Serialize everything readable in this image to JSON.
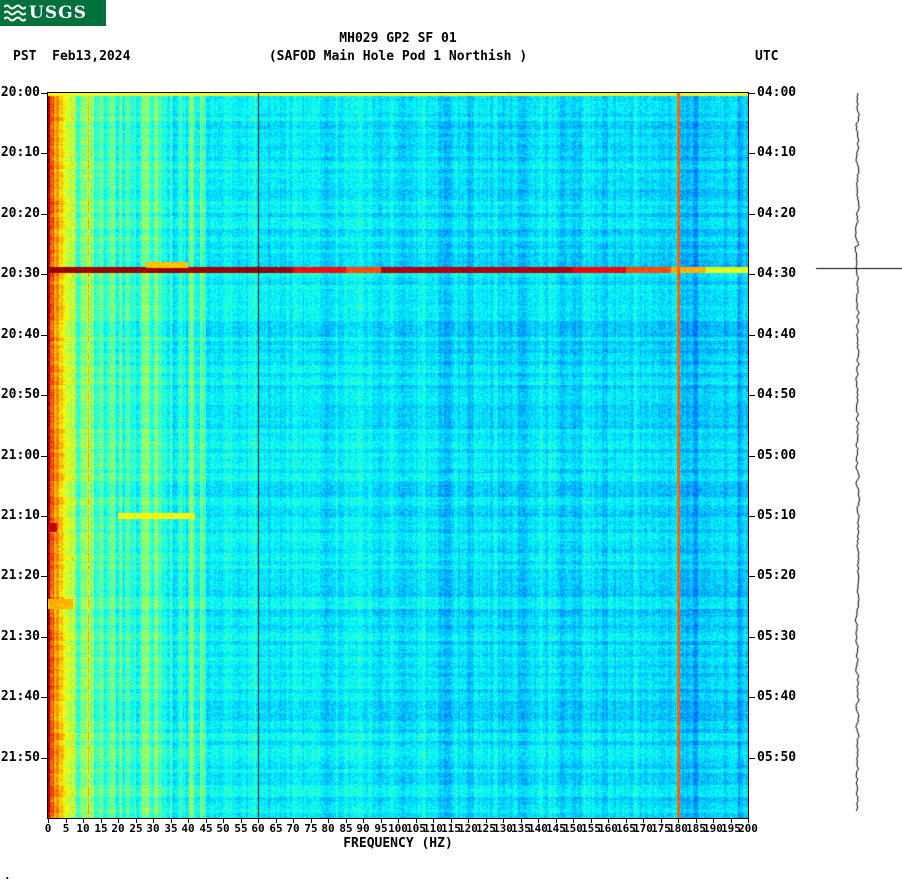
{
  "header": {
    "logo_text": "USGS"
  },
  "titles": {
    "station": "MH029 GP2 SF 01",
    "subtitle": "(SAFOD Main Hole Pod 1 Northish )",
    "left_header": "PST  Feb13,2024",
    "right_header": "UTC"
  },
  "footer_mark": ".",
  "colors": {
    "header_green": "#00703C",
    "plot_border": "#000000",
    "mains_line": "#000E1E",
    "trace": "#000000"
  },
  "chart_data": {
    "type": "heatmap",
    "title": "MH029 GP2 SF 01",
    "subtitle": "(SAFOD Main Hole Pod 1 Northish )",
    "xlabel": "FREQUENCY (HZ)",
    "ylabel_left": "PST",
    "ylabel_right": "UTC",
    "date": "Feb13,2024",
    "colormap": "jet",
    "x_range_hz": [
      0,
      200
    ],
    "x_tick_step_hz": 5,
    "x_tick_labels": [
      "0",
      "5",
      "10",
      "15",
      "20",
      "25",
      "30",
      "35",
      "40",
      "45",
      "50",
      "55",
      "60",
      "65",
      "70",
      "75",
      "80",
      "85",
      "90",
      "95",
      "100",
      "105",
      "110",
      "115",
      "120",
      "125",
      "130",
      "135",
      "140",
      "145",
      "150",
      "155",
      "160",
      "165",
      "170",
      "175",
      "180",
      "185",
      "190",
      "195",
      "200"
    ],
    "time_span_minutes": 120,
    "left_time_ticks_pst": [
      "20:00",
      "20:10",
      "20:20",
      "20:30",
      "20:40",
      "20:50",
      "21:00",
      "21:10",
      "21:20",
      "21:30",
      "21:40",
      "21:50"
    ],
    "right_time_ticks_utc": [
      "04:00",
      "04:10",
      "04:20",
      "04:30",
      "04:40",
      "04:50",
      "05:00",
      "05:10",
      "05:20",
      "05:30",
      "05:40",
      "05:50"
    ],
    "background_value": 0.35,
    "bands": [
      {
        "f": [
          0,
          1.5
        ],
        "v": 0.8
      },
      {
        "f": [
          1.5,
          3
        ],
        "v": 0.66
      },
      {
        "f": [
          3,
          8
        ],
        "v": 0.58
      },
      {
        "f": [
          8,
          15
        ],
        "v": 0.5
      },
      {
        "f": [
          15,
          45
        ],
        "v": 0.42
      },
      {
        "f": [
          45,
          100
        ],
        "v": 0.36
      },
      {
        "f": [
          100,
          180
        ],
        "v": 0.345
      },
      {
        "f": [
          180,
          200
        ],
        "v": 0.315
      }
    ],
    "stripe_amp": {
      "low_freq": 0.13,
      "high_freq": 0.045,
      "low_freq_cutoff_hz": 45
    },
    "vertical_lines": [
      {
        "name": "mains-60hz-notch",
        "freq_hz": 60,
        "style": "dark"
      },
      {
        "name": "orange-line-180hz",
        "freq_hz": 180,
        "style": "orange",
        "value": 0.78
      }
    ],
    "events": [
      {
        "name": "broadband-arrival",
        "pst": "20:29",
        "utc": "04:29",
        "t_min": 29.2,
        "dur_min": 0.9,
        "profile": [
          {
            "f": [
              0,
              70
            ],
            "v": 0.97
          },
          {
            "f": [
              70,
              85
            ],
            "v": 0.87
          },
          {
            "f": [
              85,
              95
            ],
            "v": 0.8
          },
          {
            "f": [
              95,
              150
            ],
            "v": 0.95
          },
          {
            "f": [
              150,
              165
            ],
            "v": 0.88
          },
          {
            "f": [
              165,
              178
            ],
            "v": 0.8
          },
          {
            "f": [
              178,
              188
            ],
            "v": 0.7
          },
          {
            "f": [
              188,
              200
            ],
            "v": 0.6
          }
        ]
      },
      {
        "name": "pre-event-low-freq",
        "pst": "20:28",
        "t_min": 28.4,
        "dur_min": 0.7,
        "profile": [
          {
            "f": [
              28,
              40
            ],
            "v": 0.68
          }
        ]
      },
      {
        "name": "narrowband-burst",
        "pst": "21:10",
        "t_min": 70.0,
        "dur_min": 0.8,
        "profile": [
          {
            "f": [
              20,
              42
            ],
            "v": 0.63
          }
        ]
      },
      {
        "name": "low-freq-burst",
        "pst": "21:12",
        "t_min": 71.8,
        "dur_min": 1.4,
        "profile": [
          {
            "f": [
              0,
              2.5
            ],
            "v": 0.93
          }
        ]
      },
      {
        "name": "low-freq-burst-2",
        "pst": "21:24",
        "t_min": 84.5,
        "dur_min": 1.6,
        "profile": [
          {
            "f": [
              0,
              7
            ],
            "v": 0.7
          }
        ]
      },
      {
        "name": "top-edge-row",
        "t_min": 0.15,
        "dur_min": 0.3,
        "profile": [
          {
            "f": [
              0,
              200
            ],
            "v": 0.62
          }
        ]
      }
    ],
    "seismogram": {
      "spike_t_min": 29.2
    }
  }
}
